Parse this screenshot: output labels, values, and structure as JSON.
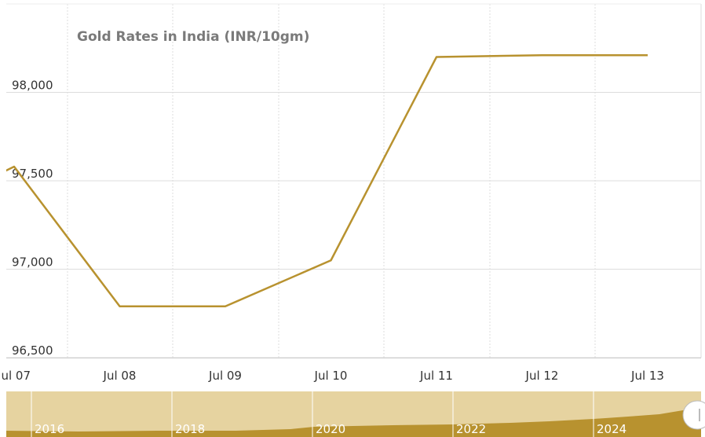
{
  "chart_data": {
    "type": "line",
    "title": "Gold Rates in India (INR/10gm)",
    "categories": [
      null,
      "Jul 07",
      "Jul 08",
      "Jul 09",
      "Jul 10",
      "Jul 11",
      "Jul 12",
      "Jul 13"
    ],
    "series": [
      {
        "name": "Gold Rate",
        "color": "#b8922f",
        "values": [
          97290,
          97580,
          96790,
          96790,
          97050,
          98200,
          98210,
          98210
        ]
      }
    ],
    "ylim": [
      96500,
      98500
    ],
    "yticks": [
      {
        "value": 96500,
        "label": "96,500"
      },
      {
        "value": 97000,
        "label": "97,000"
      },
      {
        "value": 97500,
        "label": "97,500"
      },
      {
        "value": 98000,
        "label": "98,000"
      }
    ],
    "grid": true,
    "navigator": {
      "labels": [
        "2016",
        "2018",
        "2020",
        "2022",
        "2024"
      ]
    }
  }
}
